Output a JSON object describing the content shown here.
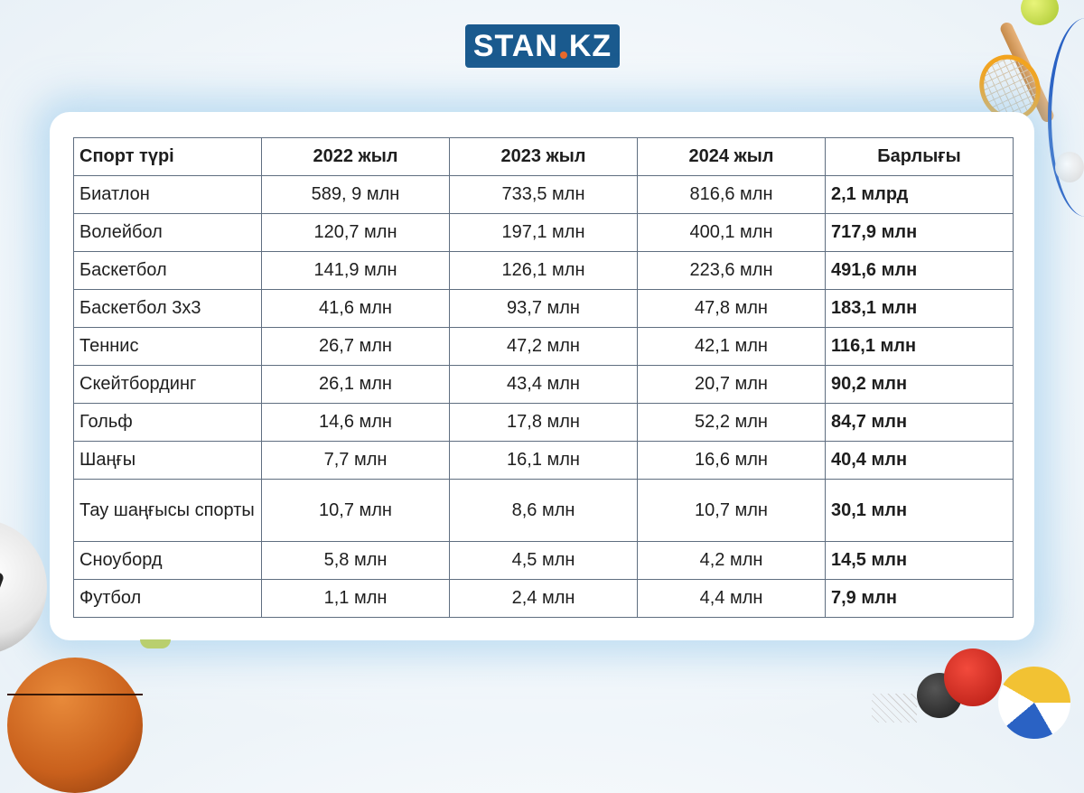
{
  "logo": {
    "left": "STAN",
    "right": "KZ",
    "brand_color": "#1a5a8e",
    "dot_color": "#e86a2c"
  },
  "table": {
    "headers": [
      "Спорт түрі",
      "2022 жыл",
      "2023 жыл",
      "2024 жыл",
      "Барлығы"
    ],
    "rows": [
      {
        "sport": "Биатлон",
        "y2022": "589, 9 млн",
        "y2023": "733,5 млн",
        "y2024": "816,6 млн",
        "total": "2,1 млрд"
      },
      {
        "sport": "Волейбол",
        "y2022": "120,7 млн",
        "y2023": "197,1 млн",
        "y2024": "400,1 млн",
        "total": "717,9 млн"
      },
      {
        "sport": "Баскетбол",
        "y2022": "141,9 млн",
        "y2023": "126,1 млн",
        "y2024": "223,6 млн",
        "total": "491,6 млн"
      },
      {
        "sport": "Баскетбол 3х3",
        "y2022": "41,6 млн",
        "y2023": "93,7 млн",
        "y2024": "47,8 млн",
        "total": "183,1 млн"
      },
      {
        "sport": "Теннис",
        "y2022": "26,7 млн",
        "y2023": "47,2 млн",
        "y2024": "42,1 млн",
        "total": "116,1 млн"
      },
      {
        "sport": "Скейтбординг",
        "y2022": "26,1 млн",
        "y2023": "43,4 млн",
        "y2024": "20,7 млн",
        "total": "90,2 млн"
      },
      {
        "sport": "Гольф",
        "y2022": "14,6 млн",
        "y2023": "17,8 млн",
        "y2024": "52,2 млн",
        "total": "84,7 млн"
      },
      {
        "sport": "Шаңғы",
        "y2022": "7,7 млн",
        "y2023": "16,1 млн",
        "y2024": "16,6 млн",
        "total": "40,4 млн"
      },
      {
        "sport": "Тау шаңғысы спорты",
        "y2022": "10,7 млн",
        "y2023": "8,6 млн",
        "y2024": "10,7 млн",
        "total": "30,1 млн"
      },
      {
        "sport": "Сноуборд",
        "y2022": "5,8 млн",
        "y2023": "4,5 млн",
        "y2024": "4,2 млн",
        "total": "14,5 млн"
      },
      {
        "sport": "Футбол",
        "y2022": "1,1 млн",
        "y2023": "2,4 млн",
        "y2024": "4,4 млн",
        "total": "7,9 млн"
      }
    ]
  },
  "decorations": [
    "soccer-ball-icon",
    "basketball-icon",
    "tennis-ball-icon",
    "baseball-icon",
    "badminton-racket-icon",
    "baseball-bat-icon",
    "ping-pong-paddle-icon",
    "volleyball-icon",
    "net-icon"
  ]
}
